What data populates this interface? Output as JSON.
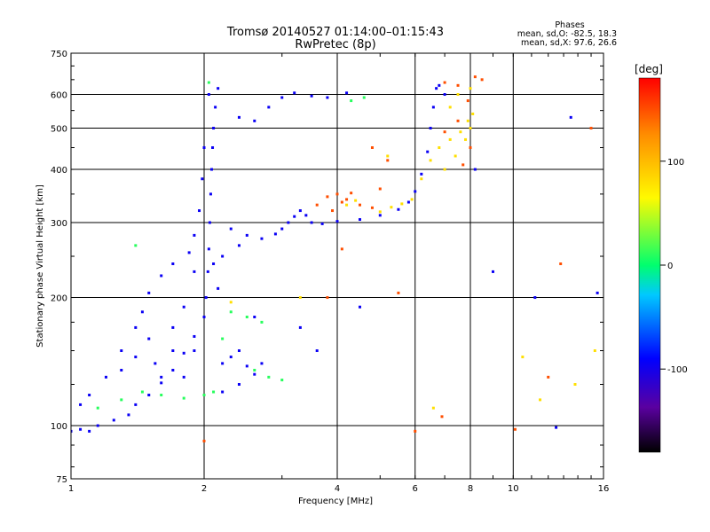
{
  "chart_data": {
    "type": "scatter",
    "title": "Tromsø 20140527 01:14:00–01:15:43",
    "subtitle": "RwPretec (8p)",
    "xlabel": "Frequency [MHz]",
    "ylabel": "Stationary phase Virtual Height [km]",
    "x_scale": "log",
    "y_scale": "log",
    "xlim": [
      1,
      16
    ],
    "ylim": [
      75,
      750
    ],
    "x_ticks": [
      1,
      2,
      4,
      6,
      8,
      10,
      16
    ],
    "x_tick_labels": [
      "1",
      "2",
      "4",
      "6",
      "8",
      "10",
      "16"
    ],
    "x_gridlines": [
      2,
      4,
      6,
      8,
      10
    ],
    "y_ticks": [
      75,
      100,
      200,
      300,
      400,
      500,
      600,
      750
    ],
    "y_tick_labels": [
      "75",
      "100",
      "200",
      "300",
      "400",
      "500",
      "600",
      "750"
    ],
    "y_gridlines": [
      100,
      200,
      300,
      400,
      500,
      600
    ],
    "grid": true,
    "info_title": "Phases",
    "info_line1": "mean, sd,O: -82.5, 18.3",
    "info_line2": "mean, sd,X:  97.6, 26.6",
    "colorbar": {
      "label": "[deg]",
      "ticks": [
        100,
        0,
        -100
      ],
      "tick_labels": [
        "100",
        "0",
        "-100"
      ],
      "range": [
        -180,
        180
      ],
      "colors": [
        "#000000",
        "#5a00a0",
        "#0000ff",
        "#00c8ff",
        "#00ff6e",
        "#fffa00",
        "#ff8c00",
        "#ff0000"
      ]
    },
    "series": [
      {
        "phase_deg": -95,
        "points": [
          [
            1.0,
            97
          ],
          [
            1.05,
            98
          ],
          [
            1.1,
            97
          ],
          [
            1.15,
            100
          ],
          [
            1.25,
            103
          ],
          [
            1.35,
            106
          ],
          [
            1.4,
            112
          ],
          [
            1.5,
            118
          ],
          [
            1.6,
            126
          ],
          [
            1.7,
            135
          ],
          [
            1.8,
            148
          ],
          [
            1.9,
            162
          ],
          [
            2.0,
            180
          ],
          [
            2.02,
            200
          ],
          [
            2.04,
            230
          ],
          [
            2.05,
            260
          ],
          [
            2.06,
            300
          ],
          [
            2.07,
            350
          ],
          [
            2.08,
            400
          ],
          [
            2.09,
            450
          ],
          [
            2.1,
            500
          ],
          [
            2.12,
            560
          ],
          [
            2.15,
            620
          ],
          [
            2.05,
            600
          ],
          [
            2.0,
            450
          ],
          [
            1.98,
            380
          ],
          [
            1.95,
            320
          ],
          [
            1.9,
            280
          ],
          [
            1.85,
            255
          ],
          [
            1.7,
            240
          ],
          [
            1.6,
            225
          ],
          [
            1.5,
            205
          ],
          [
            1.45,
            185
          ],
          [
            1.4,
            170
          ],
          [
            1.3,
            150
          ],
          [
            1.2,
            130
          ],
          [
            1.1,
            118
          ],
          [
            1.05,
            112
          ],
          [
            1.55,
            140
          ],
          [
            1.6,
            130
          ],
          [
            1.7,
            150
          ],
          [
            1.8,
            130
          ],
          [
            1.9,
            150
          ],
          [
            2.2,
            140
          ],
          [
            2.3,
            145
          ],
          [
            2.4,
            150
          ],
          [
            2.5,
            138
          ],
          [
            2.6,
            132
          ],
          [
            2.7,
            140
          ],
          [
            2.3,
            290
          ],
          [
            2.5,
            280
          ],
          [
            2.7,
            275
          ],
          [
            2.9,
            282
          ],
          [
            3.0,
            290
          ],
          [
            3.1,
            300
          ],
          [
            3.2,
            310
          ],
          [
            3.3,
            320
          ],
          [
            3.4,
            312
          ],
          [
            3.5,
            300
          ],
          [
            3.7,
            298
          ],
          [
            4.0,
            302
          ],
          [
            4.5,
            305
          ],
          [
            5.0,
            312
          ],
          [
            5.5,
            322
          ],
          [
            5.8,
            335
          ],
          [
            6.0,
            355
          ],
          [
            6.2,
            390
          ],
          [
            6.4,
            440
          ],
          [
            6.5,
            500
          ],
          [
            6.6,
            560
          ],
          [
            6.7,
            620
          ],
          [
            6.8,
            630
          ],
          [
            7.0,
            600
          ],
          [
            2.4,
            530
          ],
          [
            2.6,
            520
          ],
          [
            2.8,
            560
          ],
          [
            3.0,
            590
          ],
          [
            3.2,
            605
          ],
          [
            3.5,
            595
          ],
          [
            3.8,
            590
          ],
          [
            4.2,
            605
          ],
          [
            1.9,
            230
          ],
          [
            2.1,
            240
          ],
          [
            2.2,
            250
          ],
          [
            2.4,
            265
          ],
          [
            1.8,
            190
          ],
          [
            1.7,
            170
          ],
          [
            1.5,
            160
          ],
          [
            1.4,
            145
          ],
          [
            1.3,
            135
          ],
          [
            2.6,
            180
          ],
          [
            3.3,
            170
          ],
          [
            3.6,
            150
          ],
          [
            4.5,
            190
          ],
          [
            8.2,
            400
          ],
          [
            9.0,
            230
          ],
          [
            11.2,
            200
          ],
          [
            12.5,
            99
          ],
          [
            13.5,
            530
          ],
          [
            15.5,
            205
          ],
          [
            2.15,
            210
          ],
          [
            2.2,
            120
          ],
          [
            2.4,
            125
          ]
        ]
      },
      {
        "phase_deg": 10,
        "points": [
          [
            1.15,
            110
          ],
          [
            1.3,
            115
          ],
          [
            1.45,
            120
          ],
          [
            1.6,
            118
          ],
          [
            1.8,
            116
          ],
          [
            2.0,
            118
          ],
          [
            2.1,
            120
          ],
          [
            2.6,
            135
          ],
          [
            2.8,
            130
          ],
          [
            3.0,
            128
          ],
          [
            2.3,
            185
          ],
          [
            2.5,
            180
          ],
          [
            2.7,
            175
          ],
          [
            2.2,
            160
          ],
          [
            4.3,
            580
          ],
          [
            4.6,
            590
          ],
          [
            2.05,
            640
          ],
          [
            1.4,
            265
          ]
        ]
      },
      {
        "phase_deg": 80,
        "points": [
          [
            5.0,
            318
          ],
          [
            5.3,
            326
          ],
          [
            5.6,
            332
          ],
          [
            5.9,
            340
          ],
          [
            6.2,
            380
          ],
          [
            6.5,
            420
          ],
          [
            6.8,
            450
          ],
          [
            7.2,
            470
          ],
          [
            7.6,
            490
          ],
          [
            7.9,
            520
          ],
          [
            8.1,
            540
          ],
          [
            7.0,
            400
          ],
          [
            7.4,
            430
          ],
          [
            7.8,
            470
          ],
          [
            8.0,
            500
          ],
          [
            7.2,
            560
          ],
          [
            7.5,
            600
          ],
          [
            8.0,
            620
          ],
          [
            4.2,
            330
          ],
          [
            4.4,
            338
          ],
          [
            5.2,
            430
          ],
          [
            10.5,
            145
          ],
          [
            15.3,
            150
          ],
          [
            13.8,
            125
          ],
          [
            11.5,
            115
          ],
          [
            6.6,
            110
          ],
          [
            2.3,
            195
          ],
          [
            3.3,
            200
          ]
        ]
      },
      {
        "phase_deg": 150,
        "points": [
          [
            3.6,
            330
          ],
          [
            3.8,
            345
          ],
          [
            4.0,
            350
          ],
          [
            4.2,
            340
          ],
          [
            4.5,
            330
          ],
          [
            4.8,
            325
          ],
          [
            3.9,
            320
          ],
          [
            4.1,
            335
          ],
          [
            4.3,
            352
          ],
          [
            7.0,
            640
          ],
          [
            7.5,
            630
          ],
          [
            7.9,
            580
          ],
          [
            8.2,
            660
          ],
          [
            8.0,
            450
          ],
          [
            7.7,
            410
          ],
          [
            7.5,
            520
          ],
          [
            5.0,
            360
          ],
          [
            5.2,
            420
          ],
          [
            4.8,
            450
          ],
          [
            8.5,
            650
          ],
          [
            10.1,
            98
          ],
          [
            15.0,
            500
          ],
          [
            12.8,
            240
          ],
          [
            12.0,
            130
          ],
          [
            7.0,
            490
          ],
          [
            3.8,
            200
          ],
          [
            4.1,
            260
          ],
          [
            5.5,
            205
          ],
          [
            2.0,
            92
          ],
          [
            6.0,
            97
          ],
          [
            6.9,
            105
          ]
        ]
      }
    ]
  }
}
